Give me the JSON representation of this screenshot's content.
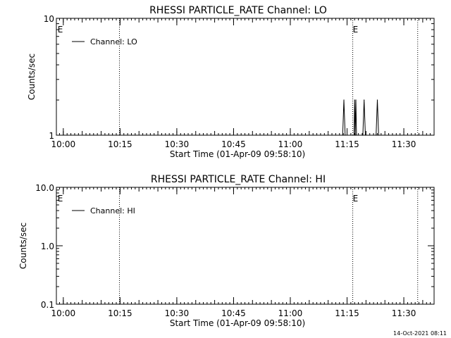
{
  "footer": {
    "timestamp": "14-Oct-2021 08:11"
  },
  "chart_data": [
    {
      "type": "line",
      "title": "RHESSI PARTICLE_RATE Channel: LO",
      "xlabel": "Start Time (01-Apr-09 09:58:10)",
      "ylabel": "Counts/sec",
      "yscale": "log",
      "xlim": [
        "09:58:10",
        "11:38:00"
      ],
      "ylim": [
        1,
        10
      ],
      "x_ticks": [
        "10:00",
        "10:15",
        "10:30",
        "10:45",
        "11:00",
        "11:15",
        "11:30"
      ],
      "y_ticks": [
        "1",
        "10"
      ],
      "legend": {
        "position": "top-left",
        "entries": [
          "Channel: LO"
        ]
      },
      "event_markers": [
        {
          "time": "09:58:30",
          "label": "E",
          "line": false
        },
        {
          "time": "10:14:50",
          "label": "",
          "line": true
        },
        {
          "time": "11:16:30",
          "label": "E",
          "line": true
        },
        {
          "time": "11:33:40",
          "label": "",
          "line": true
        }
      ],
      "series": [
        {
          "name": "Channel: LO",
          "points": [
            [
              "11:13:50",
              1
            ],
            [
              "11:14:10",
              2
            ],
            [
              "11:14:30",
              1
            ],
            [
              "11:16:50",
              1
            ],
            [
              "11:17:00",
              2
            ],
            [
              "11:17:10",
              1
            ],
            [
              "11:17:10",
              1
            ],
            [
              "11:17:20",
              2
            ],
            [
              "11:17:30",
              1
            ],
            [
              "11:19:10",
              1
            ],
            [
              "11:19:30",
              2
            ],
            [
              "11:19:50",
              1
            ],
            [
              "11:22:40",
              1
            ],
            [
              "11:23:00",
              2
            ],
            [
              "11:23:20",
              1
            ]
          ]
        }
      ]
    },
    {
      "type": "line",
      "title": "RHESSI PARTICLE_RATE Channel: HI",
      "xlabel": "Start Time (01-Apr-09 09:58:10)",
      "ylabel": "Counts/sec",
      "yscale": "log",
      "xlim": [
        "09:58:10",
        "11:38:00"
      ],
      "ylim": [
        0.1,
        10
      ],
      "x_ticks": [
        "10:00",
        "10:15",
        "10:30",
        "10:45",
        "11:00",
        "11:15",
        "11:30"
      ],
      "y_ticks": [
        "0.1",
        "1.0",
        "10.0"
      ],
      "legend": {
        "position": "top-left",
        "entries": [
          "Channel: HI"
        ]
      },
      "event_markers": [
        {
          "time": "09:58:30",
          "label": "E",
          "line": false
        },
        {
          "time": "10:14:50",
          "label": "",
          "line": true
        },
        {
          "time": "11:16:30",
          "label": "E",
          "line": true
        },
        {
          "time": "11:33:40",
          "label": "",
          "line": true
        }
      ],
      "series": [
        {
          "name": "Channel: HI",
          "points": []
        }
      ]
    }
  ]
}
